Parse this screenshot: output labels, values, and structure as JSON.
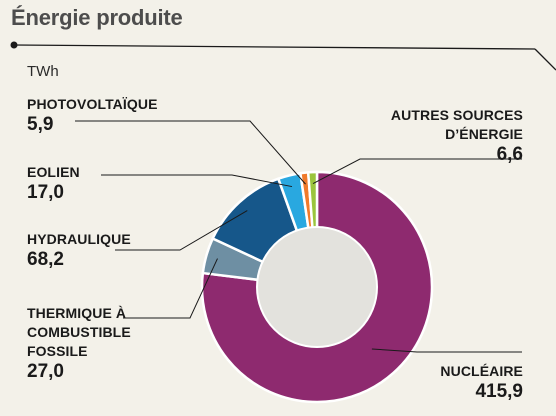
{
  "header": {
    "title": "Énergie produite"
  },
  "chart_data": {
    "type": "pie",
    "unit": "TWh",
    "categories": [
      "NUCLÉAIRE",
      "THERMIQUE À COMBUSTIBLE FOSSILE",
      "HYDRAULIQUE",
      "EOLIEN",
      "PHOTOVOLTAÏQUE",
      "AUTRES SOURCES D’ÉNERGIE"
    ],
    "values": [
      415.9,
      27.0,
      68.2,
      17.0,
      5.9,
      6.6
    ],
    "value_labels": [
      "415,9",
      "27,0",
      "68,2",
      "17,0",
      "5,9",
      "6,6"
    ],
    "colors": [
      "#8e2a6f",
      "#6e8fa3",
      "#16578a",
      "#29a8e0",
      "#f07a2b",
      "#9bc53d"
    ],
    "center_color": "#e3e2dd",
    "legend": "none"
  }
}
